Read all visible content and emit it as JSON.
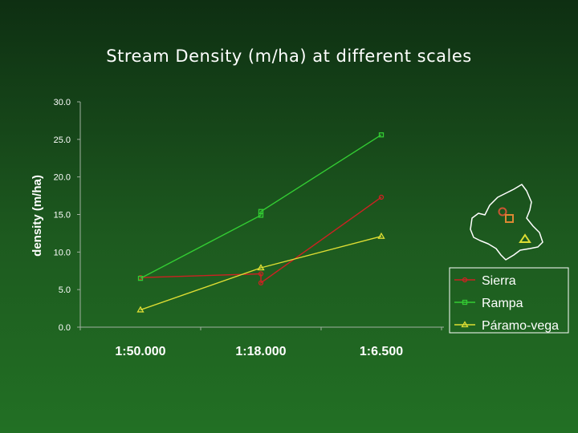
{
  "chart_data": {
    "type": "line",
    "title": "Stream Density (m/ha) at different scales",
    "xlabel": "",
    "ylabel": "density (m/ha)",
    "ylim": [
      0,
      30
    ],
    "yticks": [
      "0.0",
      "5.0",
      "10.0",
      "15.0",
      "20.0",
      "25.0",
      "30.0"
    ],
    "categories": [
      "1:50.000",
      "1:18.000",
      "1:6.500"
    ],
    "legend_position": "right",
    "grid": false,
    "series": [
      {
        "name": "Sierra",
        "color": "#cc2222",
        "marker": "circle",
        "values": [
          6.6,
          7.1,
          17.3
        ]
      },
      {
        "name": "Rampa",
        "color": "#33cc33",
        "marker": "square",
        "values": [
          6.5,
          15.4,
          25.6
        ]
      },
      {
        "name": "Páramo-vega",
        "color": "#dddd33",
        "marker": "triangle",
        "values": [
          2.3,
          7.9,
          12.1
        ]
      }
    ],
    "series_extra_points": [
      {
        "series": "Sierra",
        "category": "1:18.000",
        "value": 5.9
      },
      {
        "series": "Rampa",
        "category": "1:18.000",
        "value": 14.9
      }
    ]
  },
  "inset_map": {
    "region_color": "#ffffff",
    "markers": [
      {
        "shape": "circle",
        "color": "#cc5533"
      },
      {
        "shape": "square",
        "color": "#dd8833"
      },
      {
        "shape": "triangle",
        "color": "#dddd33"
      }
    ]
  }
}
